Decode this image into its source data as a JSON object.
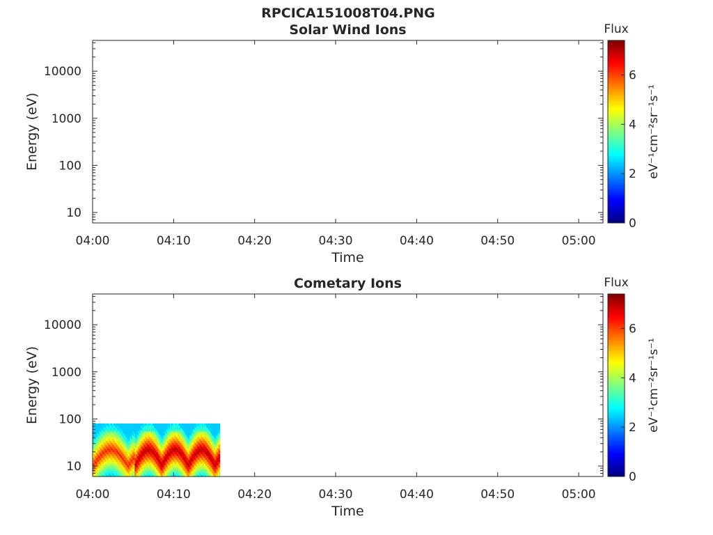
{
  "figure_title": "RPCICA151008T04.PNG",
  "colorscale": [
    "#00007f",
    "#0000ff",
    "#007fff",
    "#00ffff",
    "#7fff7f",
    "#ffff00",
    "#ff7f00",
    "#ff0000",
    "#7f0000"
  ],
  "chart_data": [
    {
      "type": "heatmap",
      "title": "Solar Wind Ions",
      "xlabel": "Time",
      "ylabel": "Energy (eV)",
      "x_ticks": [
        "04:00",
        "04:10",
        "04:20",
        "04:30",
        "04:40",
        "04:50",
        "05:00"
      ],
      "xlim_minutes": [
        0,
        63
      ],
      "y_ticks": [
        "10",
        "100",
        "1000",
        "10000"
      ],
      "yscale": "log",
      "ylim": [
        6,
        45000
      ],
      "colorbar": {
        "title": "Flux",
        "label": "eV⁻¹cm⁻²sr⁻¹s⁻¹",
        "ticks": [
          "0",
          "2",
          "4",
          "6"
        ],
        "range": [
          0,
          7.4
        ]
      },
      "data_blocks": []
    },
    {
      "type": "heatmap",
      "title": "Cometary Ions",
      "xlabel": "Time",
      "ylabel": "Energy (eV)",
      "x_ticks": [
        "04:00",
        "04:10",
        "04:20",
        "04:30",
        "04:40",
        "04:50",
        "05:00"
      ],
      "xlim_minutes": [
        0,
        63
      ],
      "y_ticks": [
        "10",
        "100",
        "1000",
        "10000"
      ],
      "yscale": "log",
      "ylim": [
        6,
        45000
      ],
      "colorbar": {
        "title": "Flux",
        "label": "eV⁻¹cm⁻²sr⁻¹s⁻¹",
        "ticks": [
          "0",
          "2",
          "4",
          "6"
        ],
        "range": [
          0,
          7.4
        ]
      },
      "data_blocks": [
        {
          "t_start_min": 0.0,
          "t_end_min": 5.2,
          "e_min": 6,
          "e_max": 80,
          "peak_flux": 6.2
        },
        {
          "t_start_min": 5.2,
          "t_end_min": 15.7,
          "e_min": 6,
          "e_max": 80,
          "peak_flux": 7.0
        }
      ]
    }
  ]
}
